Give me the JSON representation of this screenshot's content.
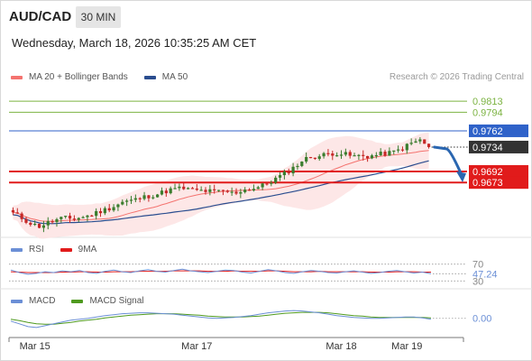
{
  "header": {
    "pair": "AUD/CAD",
    "timeframe": "30 MIN",
    "datetime": "Wednesday, March 18, 2026 10:35:25 AM CET",
    "credit": "Research © 2026 Trading Central"
  },
  "colors": {
    "ma20": "#f4736f",
    "bollinger_fill": "#fde3e3",
    "ma50": "#2a4d8f",
    "resistance": "#7cb342",
    "pivot": "#2f62c9",
    "support": "#e11b1b",
    "price_tag": "#333333",
    "arrow": "#2a66b0",
    "rsi": "#6b8fd6",
    "rsi_ma": "#e11b1b",
    "macd": "#6b8fd6",
    "macd_signal": "#4f9a1f"
  },
  "legends": {
    "main": [
      {
        "label": "MA 20 + Bollinger Bands",
        "color": "#f4736f"
      },
      {
        "label": "MA 50",
        "color": "#2a4d8f"
      }
    ],
    "rsi": [
      {
        "label": "RSI",
        "color": "#6b8fd6"
      },
      {
        "label": "9MA",
        "color": "#e11b1b"
      }
    ],
    "macd": [
      {
        "label": "MACD",
        "color": "#6b8fd6"
      },
      {
        "label": "MACD Signal",
        "color": "#4f9a1f"
      }
    ]
  },
  "chart_data": [
    {
      "type": "candlestick",
      "title": "AUD/CAD 30 MIN",
      "ylim": [
        0.958,
        0.9835
      ],
      "x_tick_labels": [
        "Mar 15",
        "Mar 17",
        "Mar 18",
        "Mar 19"
      ],
      "x_tick_positions": [
        5,
        42,
        75,
        90
      ],
      "bars": 96,
      "price_path": [
        0.962,
        0.9612,
        0.9603,
        0.9597,
        0.9603,
        0.9608,
        0.9612,
        0.961,
        0.9613,
        0.9616,
        0.9622,
        0.9627,
        0.9633,
        0.964,
        0.9642,
        0.9646,
        0.965,
        0.9653,
        0.9658,
        0.9662,
        0.9663,
        0.966,
        0.9659,
        0.9658,
        0.9657,
        0.9658,
        0.9654,
        0.966,
        0.9662,
        0.9665,
        0.9672,
        0.968,
        0.9688,
        0.9698,
        0.971,
        0.9717,
        0.9718,
        0.9722,
        0.9724,
        0.9722,
        0.9718,
        0.9719,
        0.9718,
        0.9721,
        0.9723,
        0.9726,
        0.9733,
        0.9741,
        0.9746,
        0.9734
      ],
      "current_price": 0.9734,
      "levels": [
        {
          "value": 0.9813,
          "role": "resistance"
        },
        {
          "value": 0.9794,
          "role": "resistance"
        },
        {
          "value": 0.9762,
          "role": "pivot"
        },
        {
          "value": 0.9692,
          "role": "support"
        },
        {
          "value": 0.9673,
          "role": "support"
        }
      ],
      "series": [
        {
          "name": "MA 20 + Bollinger Bands"
        },
        {
          "name": "MA 50"
        }
      ],
      "projection": {
        "from": 0.9734,
        "to": 0.9692
      }
    },
    {
      "type": "line",
      "ylim": [
        20,
        80
      ],
      "levels": [
        70,
        30
      ],
      "tick_labels": [
        "70",
        "30"
      ],
      "value_label": "47.24",
      "series": [
        {
          "name": "RSI",
          "values": [
            56,
            50,
            46,
            48,
            52,
            50,
            54,
            52,
            55,
            50,
            48,
            53,
            56,
            52,
            50,
            54,
            57,
            53,
            51,
            55,
            58,
            54,
            52,
            50,
            53,
            56,
            55,
            51,
            49,
            53,
            57,
            54,
            50,
            48,
            52,
            55,
            53,
            50,
            49,
            52,
            54,
            51,
            48,
            50,
            53,
            55,
            52,
            49,
            51,
            47.24
          ]
        },
        {
          "name": "9MA",
          "values": [
            52,
            51,
            50,
            50,
            50,
            50,
            51,
            51,
            52,
            52,
            51,
            51,
            52,
            52,
            52,
            53,
            53,
            53,
            53,
            54,
            54,
            54,
            54,
            53,
            53,
            53,
            54,
            53,
            53,
            53,
            54,
            54,
            53,
            52,
            52,
            52,
            53,
            52,
            52,
            52,
            52,
            52,
            51,
            51,
            51,
            52,
            52,
            52,
            51,
            51
          ]
        }
      ]
    },
    {
      "type": "line",
      "ylim": [
        -0.003,
        0.0025
      ],
      "value_label": "0.00",
      "series": [
        {
          "name": "MACD",
          "values": [
            -0.0006,
            -0.0012,
            -0.0018,
            -0.002,
            -0.0016,
            -0.0012,
            -0.0008,
            -0.0004,
            -0.0002,
            0.0,
            0.0003,
            0.0006,
            0.0008,
            0.001,
            0.0011,
            0.0012,
            0.0012,
            0.0011,
            0.001,
            0.0009,
            0.0007,
            0.0005,
            0.0003,
            0.0001,
            0.0,
            0.0001,
            0.0002,
            0.0004,
            0.0006,
            0.0009,
            0.0012,
            0.0014,
            0.0016,
            0.0017,
            0.0016,
            0.0014,
            0.0012,
            0.0009,
            0.0006,
            0.0004,
            0.0002,
            0.0001,
            0.0,
            0.0,
            0.0001,
            0.0002,
            0.0003,
            0.0003,
            0.0001,
            -0.0002
          ]
        },
        {
          "name": "MACD Signal",
          "values": [
            -0.0002,
            -0.0005,
            -0.0009,
            -0.0012,
            -0.0013,
            -0.0013,
            -0.0011,
            -0.0009,
            -0.0006,
            -0.0004,
            -0.0002,
            0.0001,
            0.0003,
            0.0005,
            0.0007,
            0.0008,
            0.0009,
            0.001,
            0.001,
            0.001,
            0.0009,
            0.0008,
            0.0007,
            0.0005,
            0.0004,
            0.0003,
            0.0003,
            0.0003,
            0.0004,
            0.0005,
            0.0007,
            0.0009,
            0.0011,
            0.0012,
            0.0013,
            0.0013,
            0.0013,
            0.0012,
            0.001,
            0.0008,
            0.0006,
            0.0005,
            0.0003,
            0.0002,
            0.0002,
            0.0002,
            0.0002,
            0.0002,
            0.0002,
            0.0001
          ]
        }
      ]
    }
  ]
}
